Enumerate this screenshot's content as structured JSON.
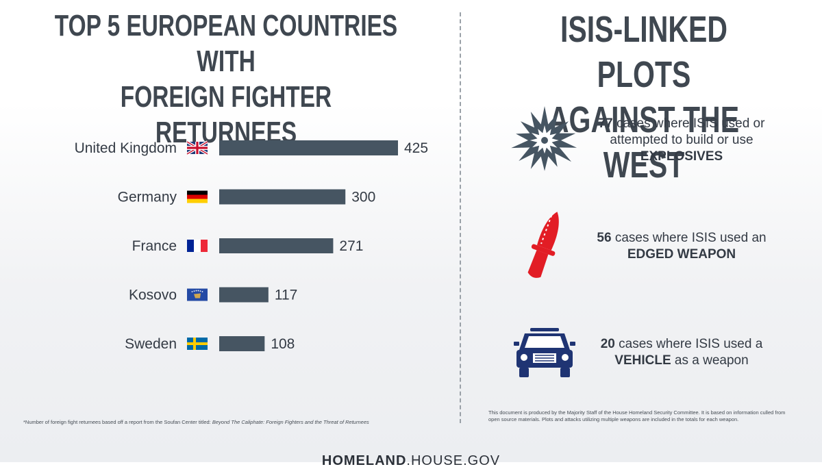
{
  "left_panel": {
    "title_line1": "TOP 5 EUROPEAN COUNTRIES WITH",
    "title_line2": "FOREIGN FIGHTER RETURNEES",
    "footnote_prefix": "*Number of foreign fight returnees based off a report from the Soufan Center titled: ",
    "footnote_italic": "Beyond The Caliphate: Foreign Fighters and the Threat of Returnees"
  },
  "right_panel": {
    "title_line1": "ISIS-LINKED PLOTS",
    "title_line2": "AGAINST THE WEST",
    "plots": [
      {
        "icon": "explosion-icon",
        "count": "77",
        "text_a": " cases where ISIS used or attempted to build or use ",
        "emphasis": "EXPLOSIVES",
        "text_b": "",
        "color": "#465562"
      },
      {
        "icon": "knife-icon",
        "count": "56",
        "text_a": " cases where ISIS used an ",
        "emphasis": "EDGED WEAPON",
        "text_b": "",
        "color": "#e21d25"
      },
      {
        "icon": "truck-icon",
        "count": "20",
        "text_a": " cases where ISIS used a ",
        "emphasis": "VEHICLE",
        "text_b": " as a weapon",
        "color": "#1f3473"
      }
    ],
    "footnote": "This document is produced by the Majority Staff of the House Homeland Security Committee. It is based on information culled from open source materials. Plots and attacks utilizing multiple weapons are included in the totals for each weapon."
  },
  "footer": {
    "logo_bold": "HOMELAND",
    "logo_light": ".HOUSE.GOV"
  },
  "colors": {
    "bar": "#465562",
    "title": "#3f4750",
    "knife": "#e21d25",
    "truck": "#1f3473"
  },
  "chart_data": {
    "type": "bar",
    "orientation": "horizontal",
    "categories": [
      "United Kingdom",
      "Germany",
      "France",
      "Kosovo",
      "Sweden"
    ],
    "values": [
      425,
      300,
      271,
      117,
      108
    ],
    "flags": [
      "flag-uk-icon",
      "flag-germany-icon",
      "flag-france-icon",
      "flag-kosovo-icon",
      "flag-sweden-icon"
    ],
    "title": "TOP 5 EUROPEAN COUNTRIES WITH FOREIGN FIGHTER RETURNEES",
    "xlabel": "",
    "ylabel": "",
    "xlim": [
      0,
      425
    ],
    "grid": false
  }
}
